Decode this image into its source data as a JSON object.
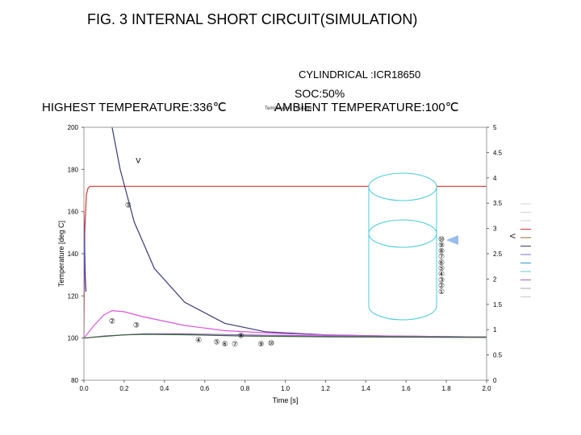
{
  "header": {
    "title": "FIG. 3 INTERNAL SHORT CIRCUIT(SIMULATION)",
    "cylindrical": "CYLINDRICAL :ICR18650",
    "soc": "SOC:50%",
    "highest_temperature": "HIGHEST TEMPERATURE:336℃",
    "ambient_temperature": "AMBIENT TEMPERATURE:100℃",
    "tiny_legend": "Temperature / Voltage"
  },
  "chart_data": {
    "type": "line",
    "xlabel": "Time [s]",
    "ylabel": "Temperature [deg C]",
    "y2label": "V",
    "xlim": [
      0,
      2
    ],
    "ylim": [
      80,
      200
    ],
    "y2lim": [
      0,
      5
    ],
    "x_ticks": [
      "0.0",
      "0.2",
      "0.4",
      "0.6",
      "0.8",
      "1.0",
      "1.2",
      "1.4",
      "1.6",
      "1.8",
      "2.0"
    ],
    "y_ticks": [
      "80",
      "100",
      "120",
      "140",
      "160",
      "180",
      "200"
    ],
    "y2_ticks": [
      "0",
      "0.5",
      "1",
      "1.5",
      "2",
      "2.5",
      "3",
      "3.5",
      "4",
      "4.5",
      "5"
    ],
    "series": [
      {
        "color": "#e03030",
        "axis": "left",
        "x": [
          0,
          0.004,
          0.012,
          0.02,
          0.03,
          0.05,
          0.5,
          1.0,
          1.5,
          2.0
        ],
        "y": [
          100,
          150,
          168,
          171,
          172,
          172,
          172,
          172,
          172,
          172
        ]
      },
      {
        "color": "#3a3a7a",
        "axis": "left",
        "x": [
          0.14,
          0.18,
          0.25,
          0.35,
          0.5,
          0.7,
          0.9,
          1.2,
          1.5,
          2.0
        ],
        "y": [
          200,
          180,
          155,
          133,
          117,
          107,
          103,
          101.5,
          101,
          100.5
        ]
      },
      {
        "color": "#dd55dd",
        "axis": "left",
        "x": [
          0,
          0.05,
          0.1,
          0.14,
          0.2,
          0.3,
          0.5,
          0.7,
          1.0,
          1.3,
          2.0
        ],
        "y": [
          100,
          106,
          111,
          113,
          112.5,
          110,
          106,
          103.5,
          102,
          101.2,
          100.5
        ]
      },
      {
        "color": "#9966cc",
        "axis": "left",
        "x": [
          0,
          0.1,
          0.3,
          0.5,
          0.8,
          1.0,
          1.5,
          2.0
        ],
        "y": [
          100,
          101,
          102,
          102,
          101.5,
          101.2,
          100.8,
          100.5
        ]
      },
      {
        "color": "#336633",
        "axis": "left",
        "x": [
          0,
          0.1,
          0.2,
          0.3,
          0.5,
          0.8,
          1.2,
          2.0
        ],
        "y": [
          100,
          100.8,
          101.5,
          101.8,
          101.6,
          101,
          100.6,
          100.3
        ]
      },
      {
        "color": "#2222aa",
        "axis": "left",
        "x": [
          0,
          0.002,
          0.006,
          0.01
        ],
        "y": [
          160,
          150,
          130,
          122
        ]
      }
    ],
    "annotations": [
      {
        "text": "V",
        "x": 0.27,
        "y": 183
      },
      {
        "text": "①",
        "x": 0.22,
        "y": 162
      },
      {
        "text": "②",
        "x": 0.14,
        "y": 107
      },
      {
        "text": "③",
        "x": 0.26,
        "y": 105
      },
      {
        "text": "④",
        "x": 0.57,
        "y": 98
      },
      {
        "text": "⑤",
        "x": 0.66,
        "y": 97
      },
      {
        "text": "⑥",
        "x": 0.7,
        "y": 96
      },
      {
        "text": "⑦",
        "x": 0.75,
        "y": 96
      },
      {
        "text": "⑧",
        "x": 0.78,
        "y": 100
      },
      {
        "text": "⑨",
        "x": 0.88,
        "y": 96
      },
      {
        "text": "⑩",
        "x": 0.93,
        "y": 96.5
      }
    ],
    "inset_numbers": [
      "⑩",
      "⑨",
      "⑧",
      "⑦",
      "⑥",
      "⑤",
      "④",
      "③",
      "②",
      "①"
    ],
    "legend_colors": [
      "#d0d0d0",
      "#d0d0d0",
      "#d0d0d0",
      "#e03030",
      "#996633",
      "#3a3a7a",
      "#7777cc",
      "#3399cc",
      "#66cccc",
      "#9966cc",
      "#aaaaaa",
      "#cccccc"
    ]
  }
}
